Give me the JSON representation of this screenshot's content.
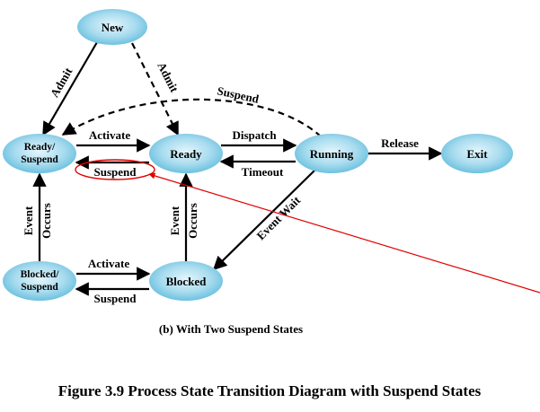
{
  "nodes": {
    "new": "New",
    "ready_suspend_l1": "Ready/",
    "ready_suspend_l2": "Suspend",
    "ready": "Ready",
    "running": "Running",
    "exit": "Exit",
    "blocked_suspend_l1": "Blocked/",
    "blocked_suspend_l2": "Suspend",
    "blocked": "Blocked"
  },
  "edges": {
    "admit_left": "Admit",
    "admit_right": "Admit",
    "suspend_running": "Suspend",
    "activate_top": "Activate",
    "suspend_ready": "Suspend",
    "dispatch": "Dispatch",
    "timeout": "Timeout",
    "release": "Release",
    "event_occurs_left_1": "Event",
    "event_occurs_left_2": "Occurs",
    "event_occurs_mid_1": "Event",
    "event_occurs_mid_2": "Occurs",
    "event_wait": "Event Wait",
    "activate_bottom": "Activate",
    "suspend_blocked": "Suspend"
  },
  "subtitle": "(b) With Two Suspend States",
  "caption": "Figure 3.9  Process State Transition Diagram with Suspend States",
  "colors": {
    "node_fill_center": "#d9f1fa",
    "node_fill_edge": "#6cc2e0",
    "line": "#000000",
    "annotation": "#e00000"
  }
}
